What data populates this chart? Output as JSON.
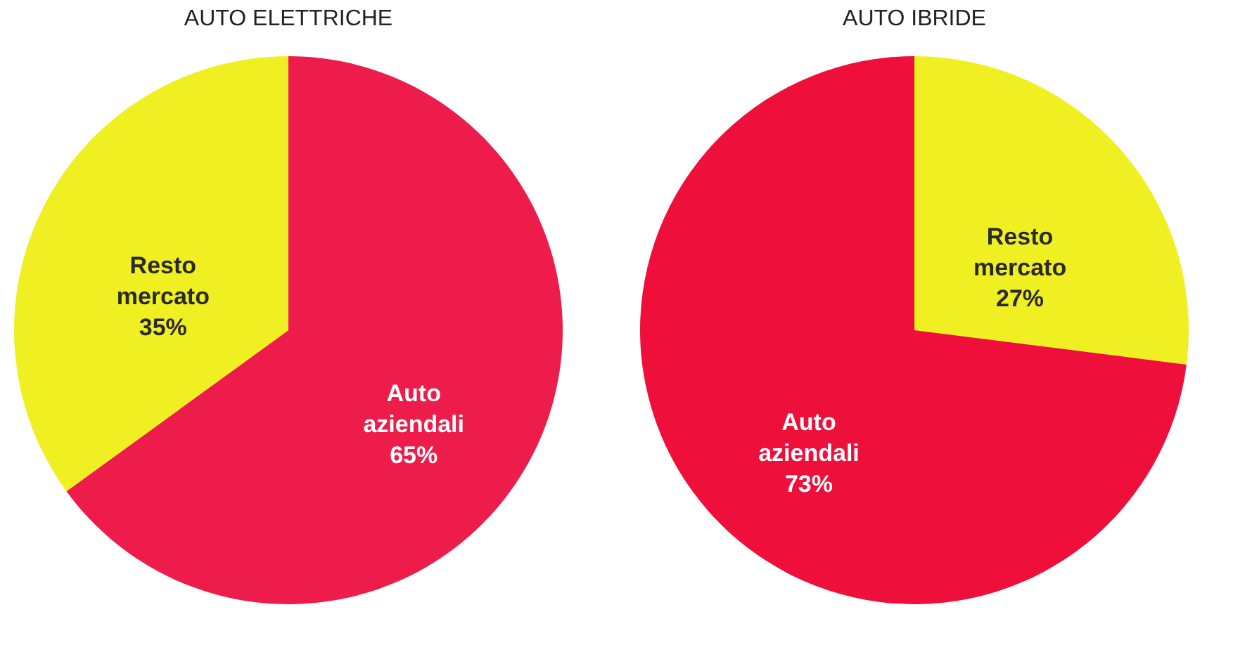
{
  "chart_data": [
    {
      "type": "pie",
      "title": "AUTO ELETTRICHE",
      "categories": [
        "Auto aziendali",
        "Resto mercato"
      ],
      "values": [
        65,
        35
      ],
      "colors": [
        "#ee1c4a",
        "#f0ef22"
      ],
      "value_labels": [
        "65%",
        "35%"
      ]
    },
    {
      "type": "pie",
      "title": "AUTO IBRIDE",
      "categories": [
        "Resto mercato",
        "Auto aziendali"
      ],
      "values": [
        27,
        73
      ],
      "colors": [
        "#f0ef22",
        "#ee0f3a"
      ],
      "value_labels": [
        "27%",
        "73%"
      ]
    }
  ]
}
